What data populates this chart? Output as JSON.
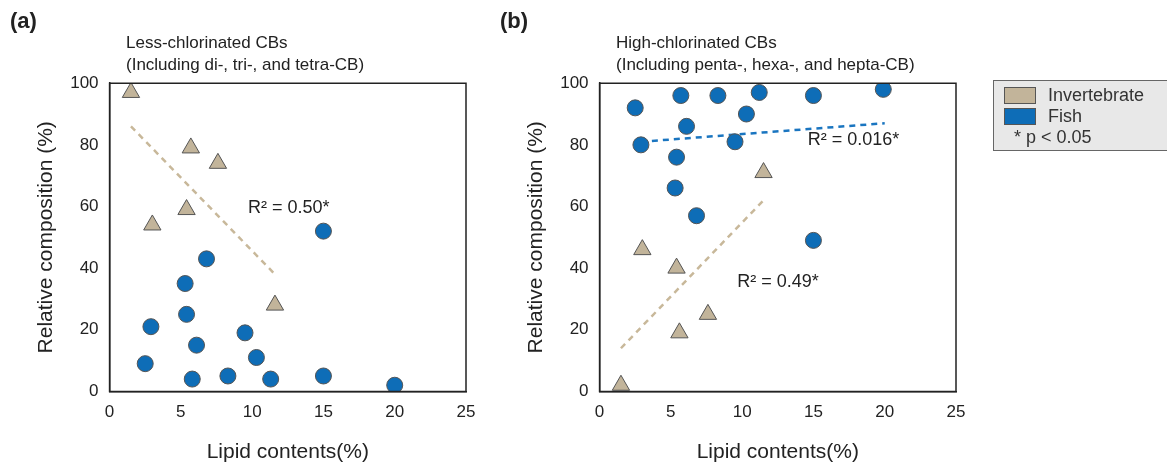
{
  "chart_data": [
    {
      "type": "scatter",
      "title": "Less-chlorinated CBs",
      "subtitle": "(Including di-, tri-, and tetra-CB)",
      "xlabel": "Lipid contents(%)",
      "ylabel": "Relative composition (%)",
      "xlim": [
        0,
        25
      ],
      "xticks": [
        0,
        5,
        10,
        15,
        20,
        25
      ],
      "ylim": [
        0,
        100
      ],
      "yticks": [
        0,
        20,
        40,
        60,
        80,
        100
      ],
      "grid": false,
      "legend": false,
      "annotations": [
        "(a)",
        "R² = 0.50*"
      ],
      "series": [
        {
          "type": "line",
          "color": "#c8b89a",
          "line_style": "dashed",
          "marker": "none",
          "x": [
            1.5,
            11.6
          ],
          "values": [
            86,
            38
          ]
        },
        {
          "color": "#c2b49a",
          "marker": "triangle",
          "x": [
            1.5,
            5.7,
            7.6,
            5.4,
            3.0,
            11.6
          ],
          "values": [
            97,
            79,
            74,
            59,
            54,
            28
          ]
        },
        {
          "color": "#0e6db7",
          "marker": "circle",
          "x": [
            15.0,
            6.8,
            5.3,
            5.4,
            2.9,
            9.5,
            6.1,
            2.5,
            10.3,
            5.8,
            8.3,
            11.3,
            15.0,
            20.0
          ],
          "values": [
            52,
            43,
            35,
            25,
            21,
            19,
            15,
            9,
            11,
            4,
            5,
            4,
            5,
            2
          ]
        }
      ]
    },
    {
      "type": "scatter",
      "title": "High-chlorinated CBs",
      "subtitle": "(Including penta-, hexa-, and hepta-CB)",
      "xlabel": "Lipid contents(%)",
      "ylabel": "Relative composition (%)",
      "xlim": [
        0,
        25
      ],
      "xticks": [
        0,
        5,
        10,
        15,
        20,
        25
      ],
      "ylim": [
        0,
        100
      ],
      "yticks": [
        0,
        20,
        40,
        60,
        80,
        100
      ],
      "grid": false,
      "legend": "right",
      "annotations": [
        "(b)",
        "R² = 0.49*",
        "R² = 0.016*",
        "* p < 0.05"
      ],
      "series": [
        {
          "type": "line",
          "color": "#c8b89a",
          "line_style": "dashed",
          "marker": "none",
          "x": [
            1.5,
            11.5
          ],
          "values": [
            14,
            62
          ]
        },
        {
          "type": "line",
          "color": "#1a75c0",
          "line_style": "dashed",
          "marker": "none",
          "x": [
            2.9,
            20.0
          ],
          "values": [
            81,
            87
          ]
        },
        {
          "name": "Invertebrate",
          "color": "#c2b49a",
          "marker": "triangle",
          "x": [
            11.5,
            3.0,
            5.4,
            7.6,
            5.6,
            1.5
          ],
          "values": [
            71,
            46,
            40,
            25,
            19,
            2
          ]
        },
        {
          "name": "Fish",
          "color": "#0e6db7",
          "marker": "circle",
          "x": [
            2.5,
            5.7,
            8.3,
            11.2,
            15.0,
            19.9,
            10.3,
            6.1,
            2.9,
            9.5,
            5.4,
            5.3,
            6.8,
            15.0
          ],
          "values": [
            92,
            96,
            96,
            97,
            96,
            98,
            90,
            86,
            80,
            81,
            76,
            66,
            57,
            49
          ]
        }
      ]
    }
  ]
}
